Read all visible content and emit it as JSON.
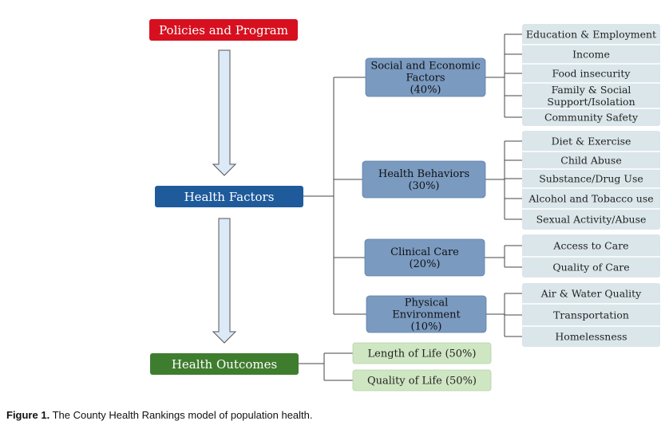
{
  "top": {
    "label": "Policies and Program"
  },
  "factors": {
    "label": "Health Factors"
  },
  "outcomes": {
    "label": "Health Outcomes",
    "items": [
      "Length of Life (50%)",
      "Quality of Life (50%)"
    ]
  },
  "categories": [
    {
      "lines": [
        "Social and Economic",
        "Factors",
        "(40%)"
      ],
      "items": [
        [
          "Education & Employment"
        ],
        [
          "Income"
        ],
        [
          "Food insecurity"
        ],
        [
          "Family & Social",
          "Support/Isolation"
        ],
        [
          "Community Safety"
        ]
      ]
    },
    {
      "lines": [
        "Health Behaviors",
        "(30%)"
      ],
      "items": [
        [
          "Diet & Exercise"
        ],
        [
          "Child Abuse"
        ],
        [
          "Substance/Drug Use"
        ],
        [
          "Alcohol and Tobacco use"
        ],
        [
          "Sexual Activity/Abuse"
        ]
      ]
    },
    {
      "lines": [
        "Clinical Care",
        "(20%)"
      ],
      "items": [
        [
          "Access to Care"
        ],
        [
          "Quality of Care"
        ]
      ]
    },
    {
      "lines": [
        "Physical",
        "Environment",
        "(10%)"
      ],
      "items": [
        [
          "Air & Water Quality"
        ],
        [
          "Transportation"
        ],
        [
          "Homelessness"
        ]
      ]
    }
  ],
  "caption": {
    "label": "Figure 1.",
    "text": " The County Health Rankings model of population health."
  },
  "colors": {
    "red": "#d7101f",
    "blue": "#1f5b9b",
    "green": "#3f7d2e",
    "category": "#7a9ac0",
    "item": "#dae6ea",
    "outcome_item": "#cfe6c3",
    "arrow_fill": "#dce9f6",
    "arrow_stroke": "#555555",
    "line": "#444444"
  }
}
